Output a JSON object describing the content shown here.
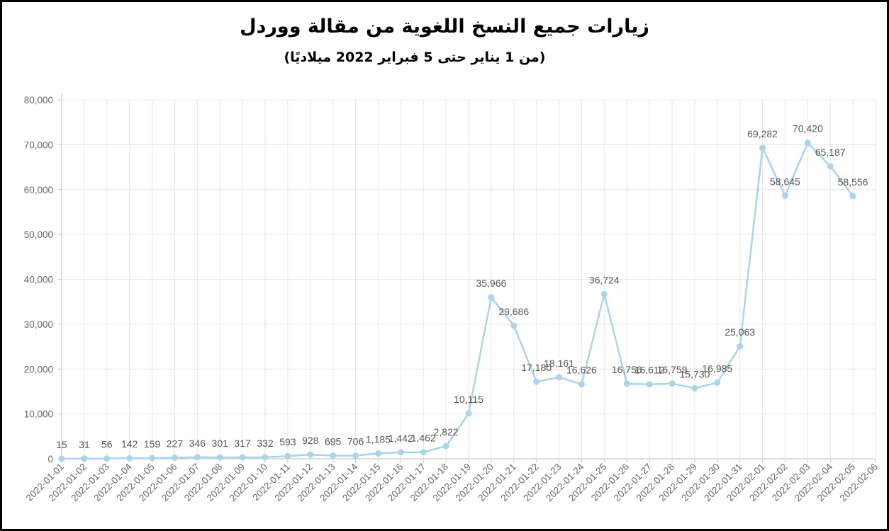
{
  "chart_data": {
    "type": "line",
    "title": "زيارات جميع النسخ اللغوية من مقالة ووردل",
    "subtitle": "(من 1 يناير حتى 5 فبراير 2022 ميلاديًا)",
    "categories": [
      "2022-01-01",
      "2022-01-02",
      "2022-01-03",
      "2022-01-04",
      "2022-01-05",
      "2022-01-06",
      "2022-01-07",
      "2022-01-08",
      "2022-01-09",
      "2022-01-10",
      "2022-01-11",
      "2022-01-12",
      "2022-01-13",
      "2022-01-14",
      "2022-01-15",
      "2022-01-16",
      "2022-01-17",
      "2022-01-18",
      "2022-01-19",
      "2022-01-20",
      "2022-01-21",
      "2022-01-22",
      "2022-01-23",
      "2022-01-24",
      "2022-01-25",
      "2022-01-26",
      "2022-01-27",
      "2022-01-28",
      "2022-01-29",
      "2022-01-30",
      "2022-01-31",
      "2022-02-01",
      "2022-02-02",
      "2022-02-03",
      "2022-02-04",
      "2022-02-05",
      "2022-02-06"
    ],
    "values": [
      15,
      31,
      56,
      142,
      159,
      227,
      346,
      301,
      317,
      332,
      593,
      928,
      695,
      706,
      1185,
      1442,
      1462,
      2822,
      10115,
      35966,
      29686,
      17180,
      18161,
      16626,
      36724,
      16756,
      16612,
      16759,
      15730,
      16985,
      25063,
      69282,
      58645,
      70420,
      65187,
      58556,
      null
    ],
    "value_labels": [
      "15",
      "31",
      "56",
      "142",
      "159",
      "227",
      "346",
      "301",
      "317",
      "332",
      "593",
      "928",
      "695",
      "706",
      "1,185",
      "1,442",
      "1,462",
      "2,822",
      "10,115",
      "35,966",
      "29,686",
      "17,180",
      "18,161",
      "16,626",
      "36,724",
      "16,756",
      "16,612",
      "16,759",
      "15,730",
      "16,985",
      "25,063",
      "69,282",
      "58,645",
      "70,420",
      "65,187",
      "58,556",
      ""
    ],
    "y_ticks": [
      "0",
      "10,000",
      "20,000",
      "30,000",
      "40,000",
      "50,000",
      "60,000",
      "70,000",
      "80,000"
    ],
    "ylim": [
      0,
      80000
    ],
    "grid": true,
    "line_color": "#abd4ea",
    "point_color": "#abd4ea"
  }
}
